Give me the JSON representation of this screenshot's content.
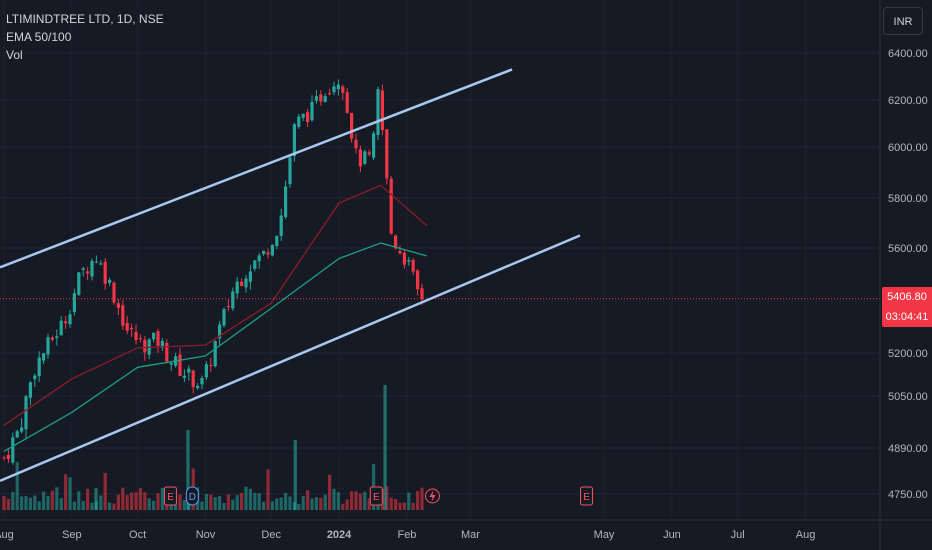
{
  "legend": {
    "symbol": "LTIMINDTREE LTD, 1D, NSE",
    "indicator": "EMA 50/100",
    "volume": "Vol"
  },
  "currency": "INR",
  "last_price": "5406.80",
  "countdown": "03:04:41",
  "colors": {
    "background": "#161a25",
    "up": "#26a69a",
    "down": "#f23645",
    "ema50": "#1c9f82",
    "ema100": "#8e1b28",
    "channel": "#a8c8f0",
    "price_line": "#f23645"
  },
  "chart_data": {
    "type": "candlestick",
    "title": "LTIMINDTREE LTD, 1D, NSE",
    "ylim": [
      4700,
      6480
    ],
    "y_ticks": [
      "6400.00",
      "6200.00",
      "6000.00",
      "5800.00",
      "5600.00",
      "5200.00",
      "5050.00",
      "4890.00",
      "4750.00"
    ],
    "x_ticks": [
      "Aug",
      "Sep",
      "Oct",
      "Nov",
      "Dec",
      "2024",
      "Feb",
      "Mar",
      "May",
      "Jun",
      "Jul",
      "Aug"
    ],
    "series": [
      {
        "name": "Price",
        "points": [
          [
            "2023-08-01",
            4860
          ],
          [
            "2023-08-08",
            4950
          ],
          [
            "2023-08-15",
            5150
          ],
          [
            "2023-08-22",
            5240
          ],
          [
            "2023-08-29",
            5330
          ],
          [
            "2023-09-05",
            5500
          ],
          [
            "2023-09-12",
            5570
          ],
          [
            "2023-09-19",
            5450
          ],
          [
            "2023-09-26",
            5290
          ],
          [
            "2023-10-03",
            5230
          ],
          [
            "2023-10-10",
            5250
          ],
          [
            "2023-10-17",
            5170
          ],
          [
            "2023-10-24",
            5120
          ],
          [
            "2023-10-31",
            5090
          ],
          [
            "2023-11-07",
            5280
          ],
          [
            "2023-11-14",
            5450
          ],
          [
            "2023-11-21",
            5530
          ],
          [
            "2023-11-28",
            5580
          ],
          [
            "2023-12-05",
            5700
          ],
          [
            "2023-12-12",
            6100
          ],
          [
            "2023-12-19",
            6150
          ],
          [
            "2023-12-26",
            6250
          ],
          [
            "2024-01-02",
            6300
          ],
          [
            "2024-01-09",
            5950
          ],
          [
            "2024-01-16",
            5950
          ],
          [
            "2024-01-19",
            6250
          ],
          [
            "2024-01-25",
            5640
          ],
          [
            "2024-02-01",
            5550
          ],
          [
            "2024-02-06",
            5430
          ],
          [
            "2024-02-09",
            5406.8
          ]
        ]
      },
      {
        "name": "EMA 50",
        "points": [
          [
            "2023-08-01",
            4880
          ],
          [
            "2023-09-01",
            5000
          ],
          [
            "2023-10-01",
            5150
          ],
          [
            "2023-11-01",
            5190
          ],
          [
            "2023-12-01",
            5370
          ],
          [
            "2024-01-01",
            5560
          ],
          [
            "2024-01-20",
            5620
          ],
          [
            "2024-02-10",
            5570
          ]
        ]
      },
      {
        "name": "EMA 100",
        "points": [
          [
            "2023-08-01",
            4960
          ],
          [
            "2023-09-01",
            5110
          ],
          [
            "2023-10-01",
            5220
          ],
          [
            "2023-11-01",
            5230
          ],
          [
            "2023-12-01",
            5390
          ],
          [
            "2024-01-01",
            5780
          ],
          [
            "2024-01-20",
            5850
          ],
          [
            "2024-02-10",
            5690
          ]
        ]
      }
    ],
    "volume_markers": [
      "E",
      "D",
      "E",
      "E"
    ],
    "price_line": 5406.8,
    "grid": true
  }
}
